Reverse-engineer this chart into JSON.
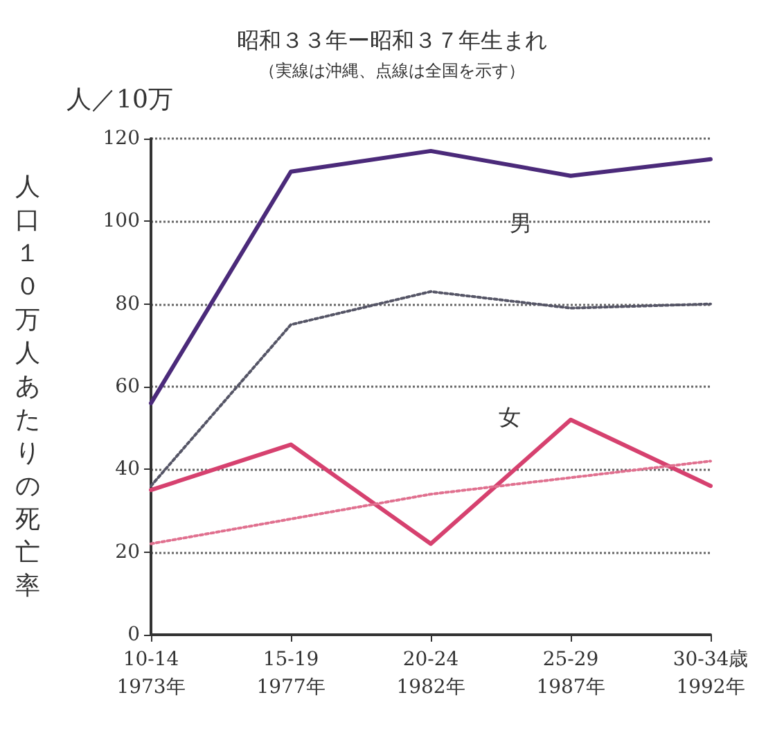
{
  "chart_data": {
    "type": "line",
    "title": "昭和３３年ー昭和３７年生まれ",
    "subtitle": "（実線は沖縄、点線は全国を示す）",
    "ylabel": "人口１０万人あたりの死亡率",
    "categories": [
      "10-14\n1973年",
      "15-19\n1977年",
      "20-24\n1982年",
      "25-29\n1987年",
      "30-34歳\n1992年"
    ],
    "series": [
      {
        "color": "#4b2a7a",
        "line_style": "solid",
        "values": [
          56,
          112,
          117,
          111,
          115
        ]
      },
      {
        "color": "#555566",
        "line_style": "dotted",
        "values": [
          36,
          75,
          83,
          79,
          80
        ]
      },
      {
        "color": "#d6416f",
        "line_style": "solid",
        "values": [
          35,
          46,
          22,
          52,
          36
        ]
      },
      {
        "color": "#e0708f",
        "line_style": "dotted",
        "values": [
          22,
          28,
          34,
          38,
          42
        ]
      }
    ],
    "annotations": [
      "人／10万",
      "男",
      "女"
    ],
    "ylim": [
      0,
      120
    ],
    "yticks": [
      0,
      20,
      40,
      60,
      80,
      100,
      120
    ],
    "grid": "y",
    "marker": "none"
  }
}
